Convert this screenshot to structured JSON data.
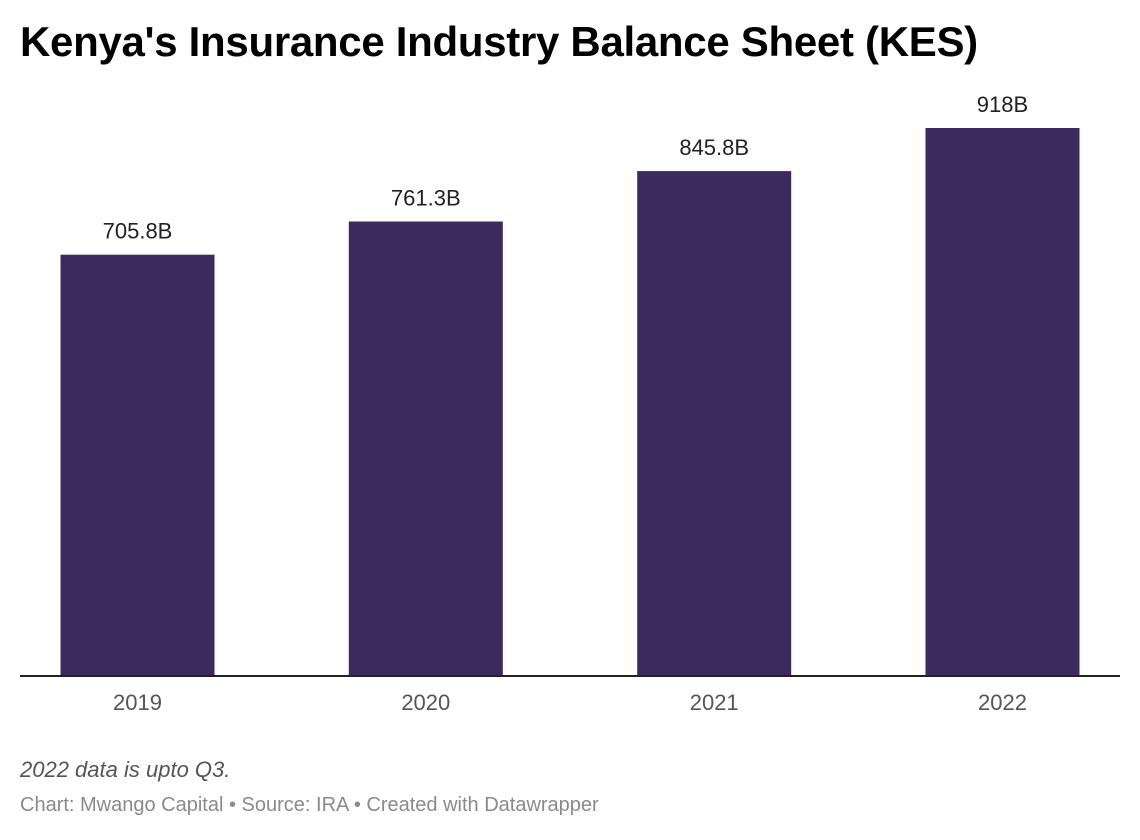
{
  "chart_data": {
    "type": "bar",
    "title": "Kenya's Insurance Industry Balance Sheet (KES)",
    "categories": [
      "2019",
      "2020",
      "2021",
      "2022"
    ],
    "values": [
      705.8,
      761.3,
      845.8,
      918
    ],
    "value_labels": [
      "705.8B",
      "761.3B",
      "845.8B",
      "918B"
    ],
    "unit": "B",
    "ylim": [
      0,
      918
    ],
    "grid": false,
    "bar_color": "#3c2a5f",
    "baseline_color": "#222222"
  },
  "notes": {
    "note": "2022 data is upto Q3.",
    "footer": "Chart: Mwango Capital • Source: IRA • Created with Datawrapper"
  }
}
